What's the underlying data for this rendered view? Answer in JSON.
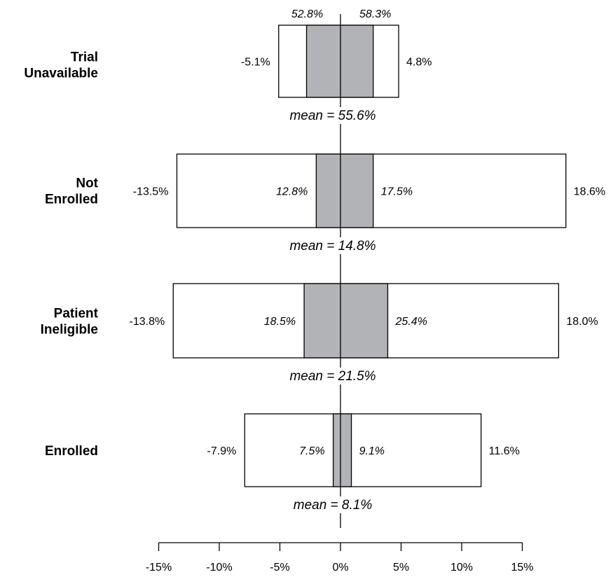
{
  "chart_data": {
    "type": "box",
    "orientation": "horizontal",
    "xlim": [
      -15,
      15
    ],
    "ticks": [
      -15,
      -10,
      -5,
      0,
      5,
      10,
      15
    ],
    "tick_labels": [
      "-15%",
      "-10%",
      "-5%",
      "0%",
      "5%",
      "10%",
      "15%"
    ],
    "colors": {
      "inner_box": "#b2b3b7",
      "outer_box": "#ffffff",
      "stroke": "#000000"
    },
    "groups": [
      {
        "label_lines": [
          "Trial",
          "Unavailable"
        ],
        "outer_low": -5.1,
        "outer_high": 4.8,
        "inner_low": -2.8,
        "inner_high": 2.7,
        "outer_low_label": "-5.1%",
        "outer_high_label": "4.8%",
        "inner_low_label": "52.8%",
        "inner_high_label": "58.3%",
        "inner_labels_above": true,
        "mean_label": "mean = 55.6%"
      },
      {
        "label_lines": [
          "Not",
          "Enrolled"
        ],
        "outer_low": -13.5,
        "outer_high": 18.6,
        "inner_low": -2.0,
        "inner_high": 2.7,
        "outer_low_label": "-13.5%",
        "outer_high_label": "18.6%",
        "inner_low_label": "12.8%",
        "inner_high_label": "17.5%",
        "inner_labels_above": false,
        "mean_label": "mean = 14.8%"
      },
      {
        "label_lines": [
          "Patient",
          "Ineligible"
        ],
        "outer_low": -13.8,
        "outer_high": 18.0,
        "inner_low": -3.0,
        "inner_high": 3.9,
        "outer_low_label": "-13.8%",
        "outer_high_label": "18.0%",
        "inner_low_label": "18.5%",
        "inner_high_label": "25.4%",
        "inner_labels_above": false,
        "mean_label": "mean = 21.5%"
      },
      {
        "label_lines": [
          "Enrolled"
        ],
        "outer_low": -7.9,
        "outer_high": 11.6,
        "inner_low": -0.6,
        "inner_high": 0.9,
        "outer_low_label": "-7.9%",
        "outer_high_label": "11.6%",
        "inner_low_label": "7.5%",
        "inner_high_label": "9.1%",
        "inner_labels_above": false,
        "mean_label": "mean = 8.1%"
      }
    ]
  }
}
